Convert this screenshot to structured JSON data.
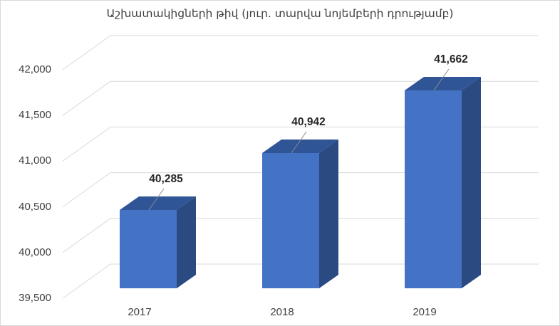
{
  "chart_data": {
    "type": "bar",
    "style": "3d-column",
    "title": "Աշխատակիցների թիվ (յուր. տարվա նոյեմբերի դրությամբ)",
    "categories": [
      "2017",
      "2018",
      "2019"
    ],
    "values": [
      40285,
      40942,
      41662
    ],
    "value_labels": [
      "40,285",
      "40,942",
      "41,662"
    ],
    "xlabel": "",
    "ylabel": "",
    "ylim": [
      39500,
      42000
    ],
    "y_ticks": [
      39500,
      40000,
      40500,
      41000,
      41500,
      42000
    ],
    "y_tick_labels": [
      "39,500",
      "40,000",
      "40,500",
      "41,000",
      "41,500",
      "42,000"
    ],
    "grid": true,
    "legend": "none",
    "colors": {
      "bar_front": "#4472c4",
      "bar_top": "#2f5597",
      "bar_side": "#2b4a82",
      "gridline": "#d9d9d9",
      "text": "#404040"
    }
  }
}
